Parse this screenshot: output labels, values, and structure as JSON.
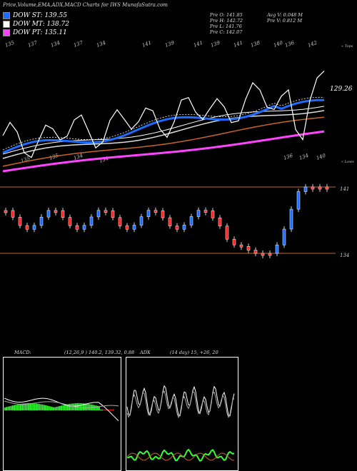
{
  "title": "Price,Volume,EMA,ADX,MACD Charts for IWS MunafaSutra.com",
  "legend": [
    {
      "label": "DOW ST: 139.55",
      "color": "#1e6bff"
    },
    {
      "label": "DOW MT: 138.72",
      "color": "#ffffff"
    },
    {
      "label": "DOW PT: 135.11",
      "color": "#ff44ff"
    }
  ],
  "stats": {
    "open": "Pre  O: 141.85",
    "high": "Pre  H: 142.72",
    "low": "Pre  L: 141.76",
    "close": "Pre  C: 142.07",
    "avg_vol": "Avg V: 0.048  M",
    "pre_vol": "Pre  V: 0.812  M"
  },
  "top_numbers": [
    "135",
    "137",
    "134",
    "137",
    "134",
    "141",
    "139",
    "141",
    "139",
    "141",
    "138",
    "140",
    "136",
    "142"
  ],
  "lower_numbers": [
    "135",
    "135",
    "134",
    "134",
    "136",
    "134",
    "140"
  ],
  "right_label_top": "« Tops",
  "right_label_low": "« Lows",
  "price_label": "129.26",
  "level_high": "141",
  "level_low": "134",
  "macd_label": "MACD:",
  "macd_values": "(12,26,9 ) 140.2,  139.32,  0.88",
  "adx_label": "ADX",
  "adx_values": "(14  day) 15,  +26,  20",
  "colors": {
    "ema_st": "#1e6bff",
    "ema_mt": "#ffffff",
    "ema_pt": "#ff44ff",
    "ema_long": "#c8642a",
    "candle_up": "#1e6bff",
    "candle_down": "#ff2020"
  }
}
